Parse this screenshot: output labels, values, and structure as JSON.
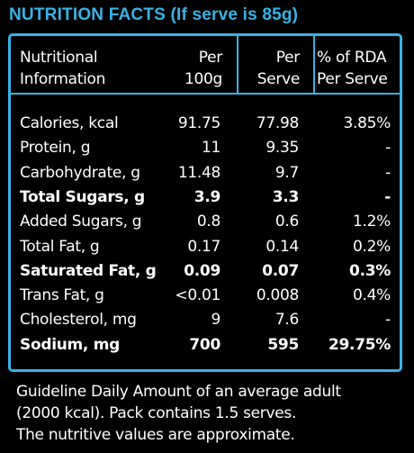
{
  "title": "NUTRITION FACTS (If serve is 85g)",
  "colors": {
    "accent": "#37b3e6",
    "background": "#000000",
    "text": "#ffffff"
  },
  "header": {
    "col0": [
      "Nutritional",
      "Information"
    ],
    "col1": [
      "Per",
      "100g"
    ],
    "col2": [
      "Per",
      "Serve"
    ],
    "col3": [
      "% of RDA",
      "Per Serve"
    ]
  },
  "rows": [
    {
      "label": "Calories, kcal",
      "per100": "91.75",
      "perServe": "77.98",
      "rda": "3.85%",
      "bold": false
    },
    {
      "label": "Protein, g",
      "per100": "11",
      "perServe": "9.35",
      "rda": "-",
      "bold": false
    },
    {
      "label": "Carbohydrate, g",
      "per100": "11.48",
      "perServe": "9.7",
      "rda": "-",
      "bold": false
    },
    {
      "label": "Total Sugars, g",
      "per100": "3.9",
      "perServe": "3.3",
      "rda": "-",
      "bold": true
    },
    {
      "label": "Added Sugars, g",
      "per100": "0.8",
      "perServe": "0.6",
      "rda": "1.2%",
      "bold": false
    },
    {
      "label": "Total Fat, g",
      "per100": "0.17",
      "perServe": "0.14",
      "rda": "0.2%",
      "bold": false
    },
    {
      "label": "Saturated Fat, g",
      "per100": "0.09",
      "perServe": "0.07",
      "rda": "0.3%",
      "bold": true
    },
    {
      "label": "Trans Fat, g",
      "per100": "<0.01",
      "perServe": "0.008",
      "rda": "0.4%",
      "bold": false
    },
    {
      "label": "Cholesterol, mg",
      "per100": "9",
      "perServe": "7.6",
      "rda": "-",
      "bold": false
    },
    {
      "label": "Sodium, mg",
      "per100": "700",
      "perServe": "595",
      "rda": "29.75%",
      "bold": true
    }
  ],
  "footer": [
    "Guideline Daily Amount of an average adult",
    "(2000 kcal). Pack contains 1.5 serves.",
    "The nutritive values are approximate."
  ]
}
